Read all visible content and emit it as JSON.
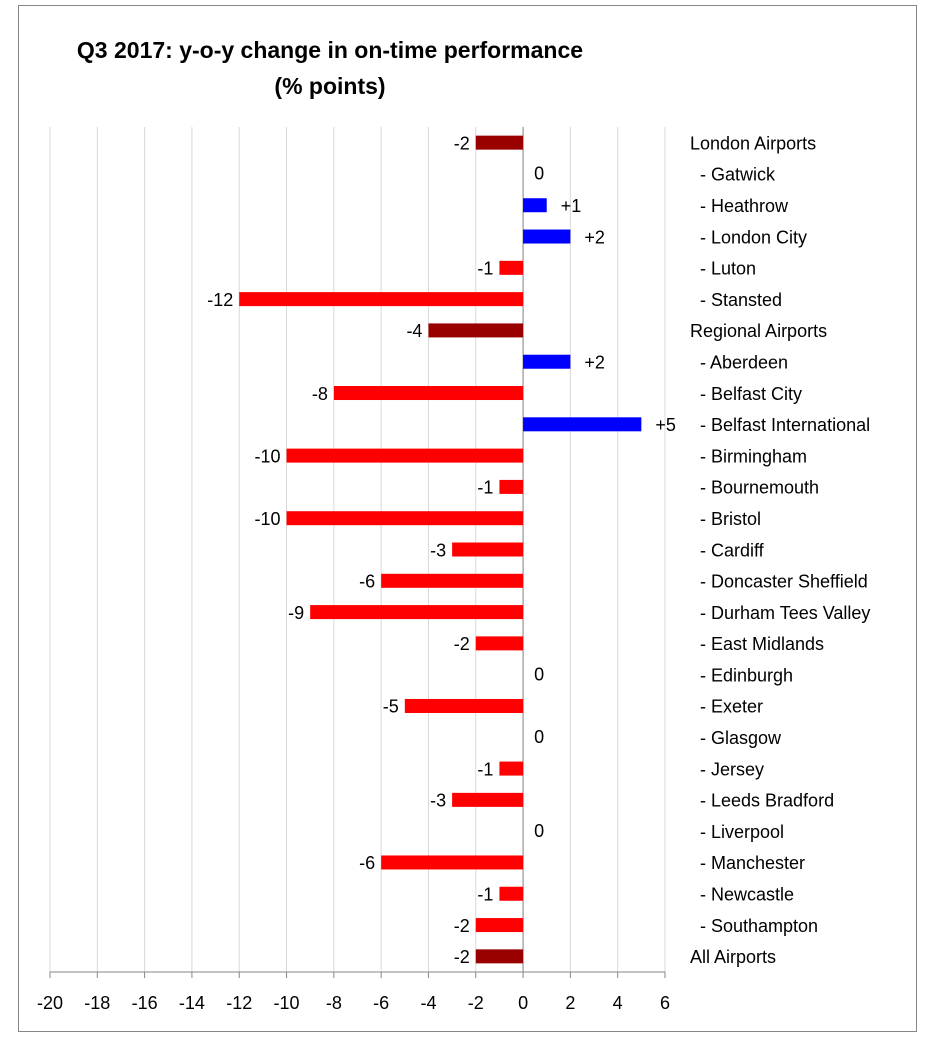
{
  "chart_data": {
    "type": "barh",
    "title": "Q3 2017: y-o-y change in on-time performance",
    "subtitle": "(% points)",
    "categories": [
      "London Airports",
      "- Gatwick",
      "- Heathrow",
      "- London City",
      "- Luton",
      "- Stansted",
      "Regional Airports",
      "- Aberdeen",
      "- Belfast City",
      "- Belfast International",
      "- Birmingham",
      "- Bournemouth",
      "- Bristol",
      "- Cardiff",
      "- Doncaster Sheffield",
      "- Durham Tees Valley",
      "- East Midlands",
      "- Edinburgh",
      "- Exeter",
      "- Glasgow",
      "- Jersey",
      "- Leeds Bradford",
      "- Liverpool",
      "- Manchester",
      "- Newcastle",
      "- Southampton",
      "All Airports"
    ],
    "values": [
      -2,
      0,
      1,
      2,
      -1,
      -12,
      -4,
      2,
      -8,
      5,
      -10,
      -1,
      -10,
      -3,
      -6,
      -9,
      -2,
      0,
      -5,
      0,
      -1,
      -3,
      0,
      -6,
      -1,
      -2,
      -2
    ],
    "value_labels": [
      "-2",
      "0",
      "+1",
      "+2",
      "-1",
      "-12",
      "-4",
      "+2",
      "-8",
      "+5",
      "-10",
      "-1",
      "-10",
      "-3",
      "-6",
      "-9",
      "-2",
      "0",
      "-5",
      "0",
      "-1",
      "-3",
      "0",
      "-6",
      "-1",
      "-2",
      "-2"
    ],
    "colors": [
      "#990000",
      "#ff0000",
      "#0000ff",
      "#0000ff",
      "#ff0000",
      "#ff0000",
      "#990000",
      "#0000ff",
      "#ff0000",
      "#0000ff",
      "#ff0000",
      "#ff0000",
      "#ff0000",
      "#ff0000",
      "#ff0000",
      "#ff0000",
      "#ff0000",
      "#ff0000",
      "#ff0000",
      "#ff0000",
      "#ff0000",
      "#ff0000",
      "#ff0000",
      "#ff0000",
      "#ff0000",
      "#ff0000",
      "#990000"
    ],
    "xlim": [
      -20,
      6
    ],
    "xticks": [
      -20,
      -18,
      -16,
      -14,
      -12,
      -10,
      -8,
      -6,
      -4,
      -2,
      0,
      2,
      4,
      6
    ],
    "grid": true
  }
}
